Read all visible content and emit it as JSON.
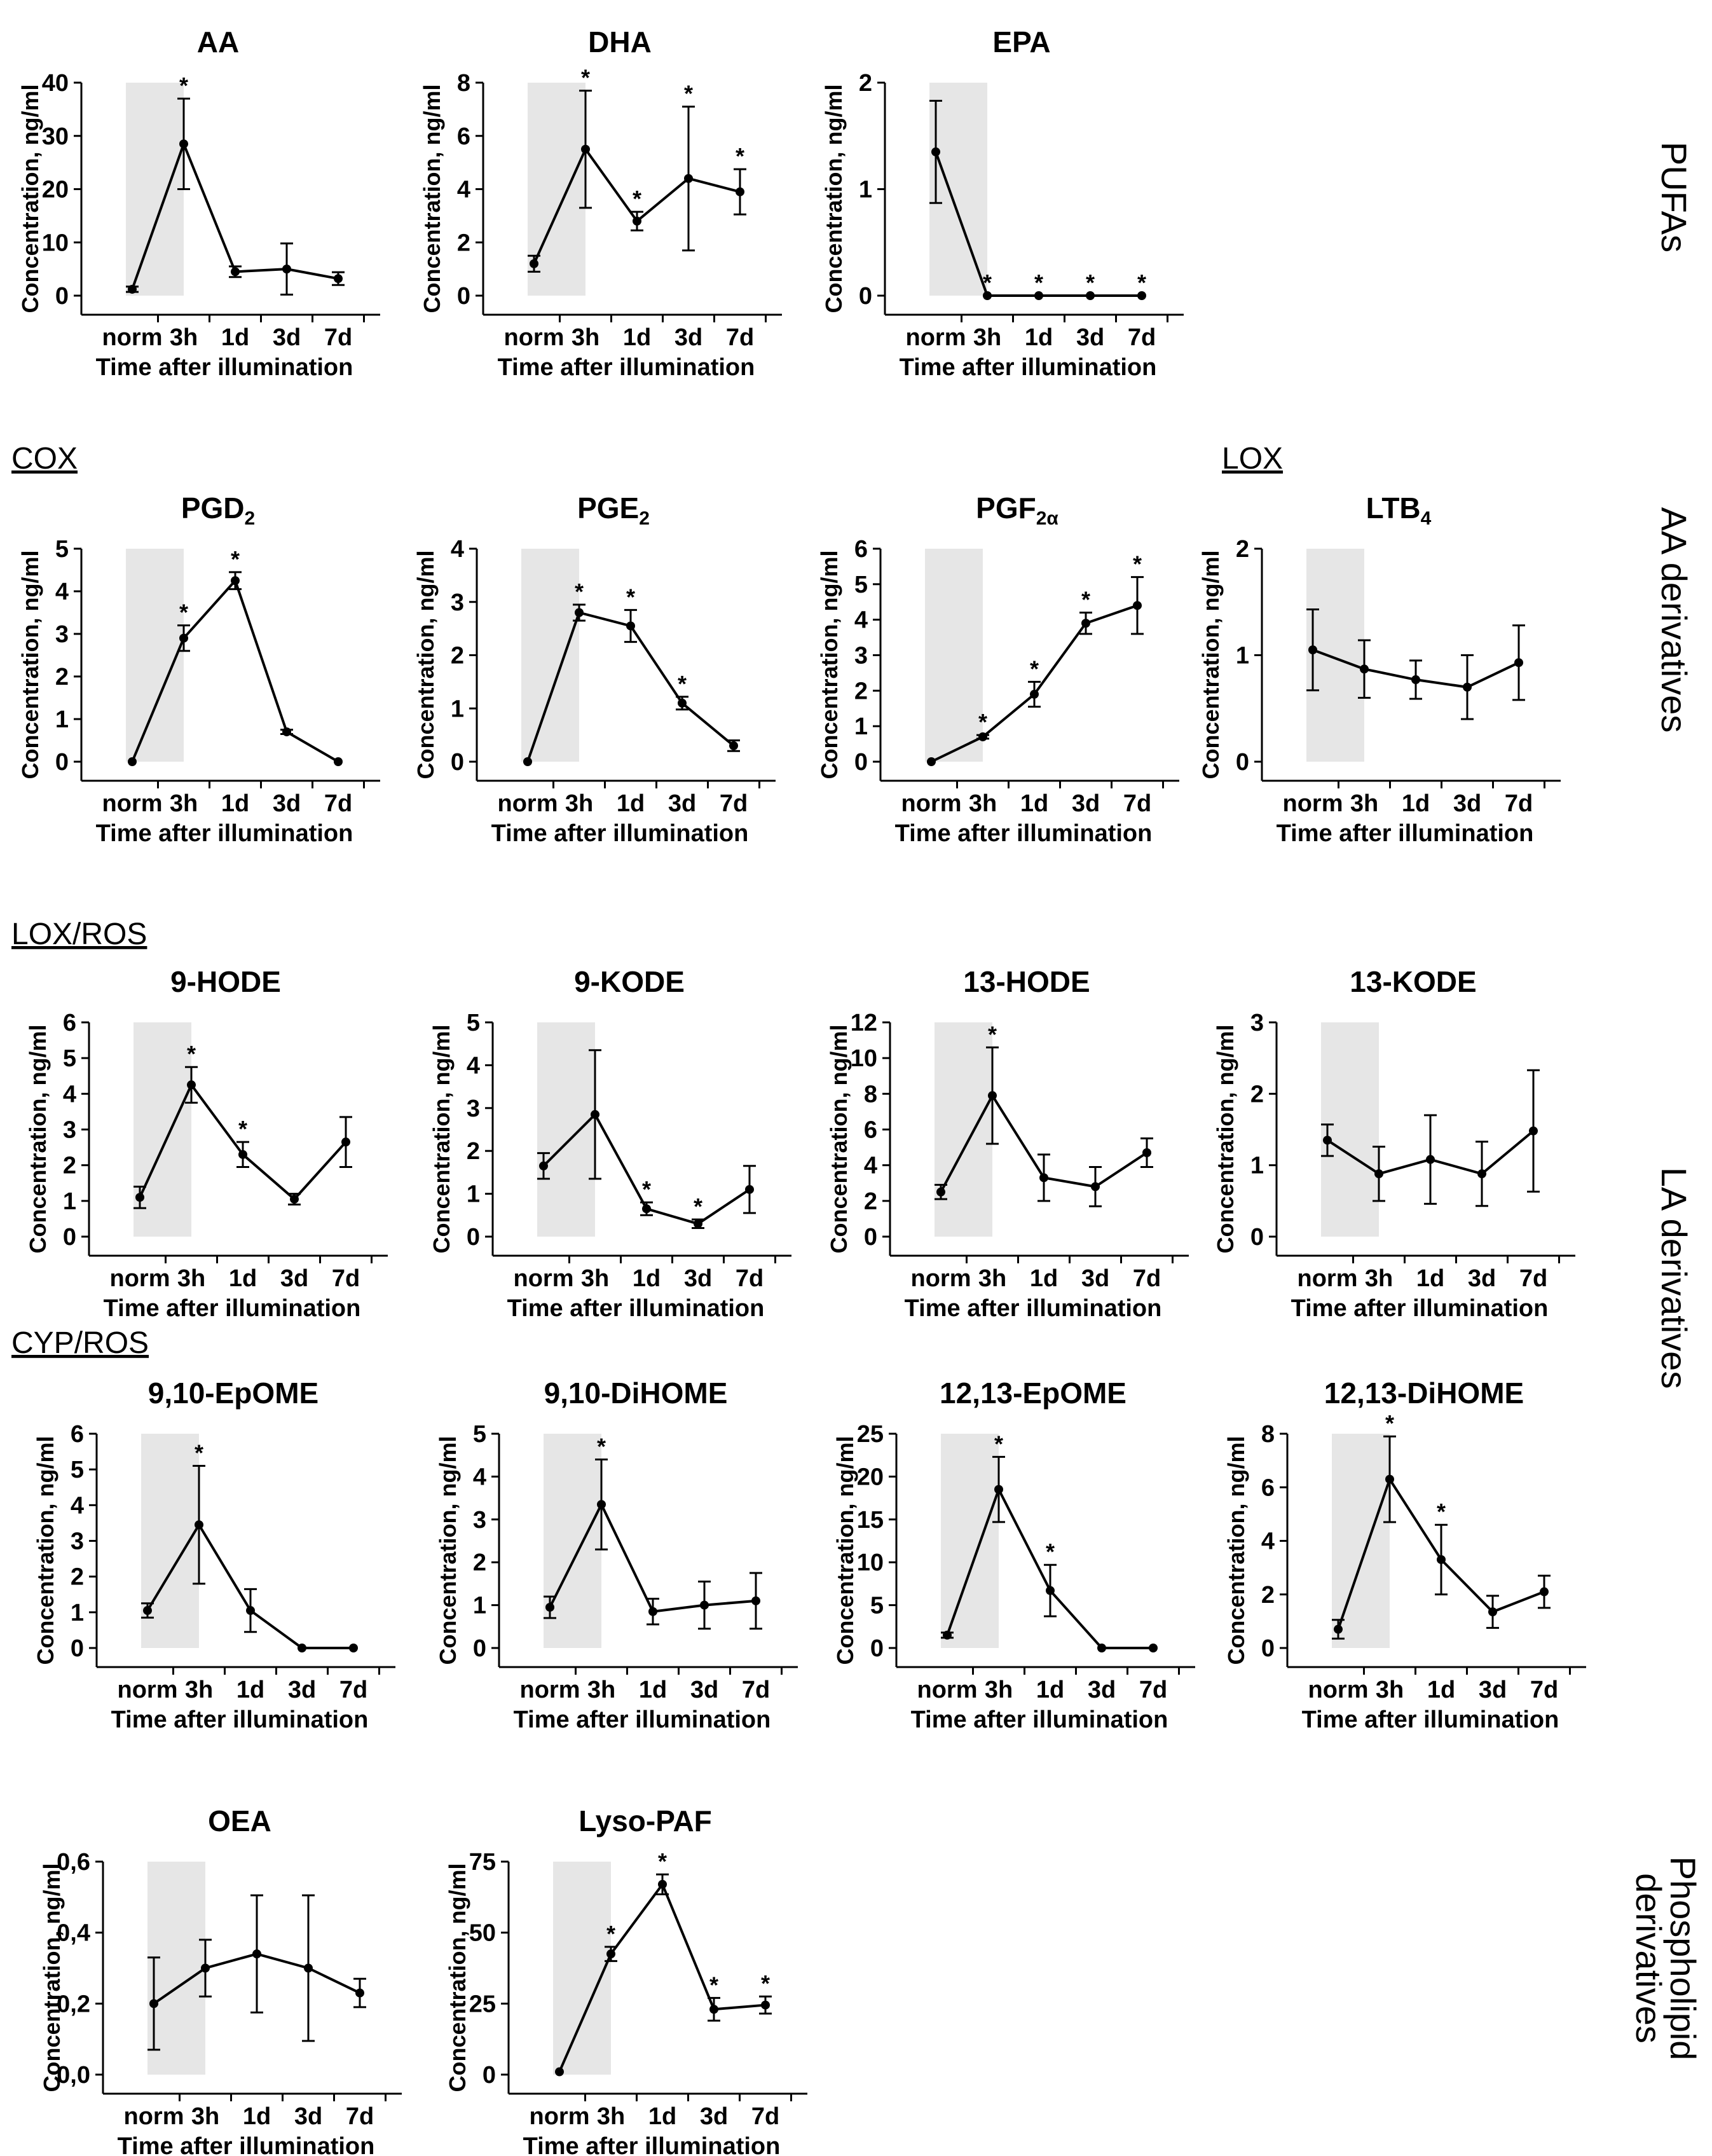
{
  "figure_title": "",
  "row_labels": {
    "pufas": "PUFAs",
    "aa_derivatives": "AA derivatives",
    "la_derivatives": "LA derivatives",
    "phospholipid_line1": "Phospholipid",
    "phospholipid_line2": "derivatives"
  },
  "group_labels": {
    "cox": "COX",
    "lox": "LOX",
    "lox_ros": "LOX/ROS",
    "cyp_ros": "CYP/ROS"
  },
  "chart_data": [
    {
      "type": "line",
      "title": "AA",
      "title_sub": "",
      "xlabel": "Time after illumination",
      "ylabel": "Concentration, ng/ml",
      "categories": [
        "norm",
        "3h",
        "1d",
        "3d",
        "7d"
      ],
      "highlight": [
        "norm",
        "3h"
      ],
      "values": [
        1.2,
        28.5,
        4.5,
        5.0,
        3.2
      ],
      "errors": [
        0.5,
        8.5,
        1.0,
        4.8,
        1.2
      ],
      "significant": [
        false,
        true,
        false,
        false,
        false
      ],
      "ylim": [
        0,
        40
      ],
      "yticks": [
        "0",
        "10",
        "20",
        "30",
        "40"
      ]
    },
    {
      "type": "line",
      "title": "DHA",
      "title_sub": "",
      "xlabel": "Time after illumination",
      "ylabel": "Concentration, ng/ml",
      "categories": [
        "norm",
        "3h",
        "1d",
        "3d",
        "7d"
      ],
      "highlight": [
        "norm",
        "3h"
      ],
      "values": [
        1.2,
        5.5,
        2.8,
        4.4,
        3.9
      ],
      "errors": [
        0.3,
        2.2,
        0.35,
        2.7,
        0.85
      ],
      "significant": [
        false,
        true,
        true,
        true,
        true
      ],
      "ylim": [
        0,
        8
      ],
      "yticks": [
        "0",
        "2",
        "4",
        "6",
        "8"
      ]
    },
    {
      "type": "line",
      "title": "EPA",
      "title_sub": "",
      "xlabel": "Time after illumination",
      "ylabel": "Concentration, ng/ml",
      "categories": [
        "norm",
        "3h",
        "1d",
        "3d",
        "7d"
      ],
      "highlight": [
        "norm",
        "3h"
      ],
      "values": [
        1.35,
        0,
        0,
        0,
        0
      ],
      "errors": [
        0.48,
        0,
        0,
        0,
        0
      ],
      "significant": [
        false,
        true,
        true,
        true,
        true
      ],
      "ylim": [
        0,
        2
      ],
      "yticks": [
        "0",
        "1",
        "2"
      ]
    },
    {
      "type": "line",
      "title": "PGD",
      "title_sub": "2",
      "xlabel": "Time after illumination",
      "ylabel": "Concentration, ng/ml",
      "categories": [
        "norm",
        "3h",
        "1d",
        "3d",
        "7d"
      ],
      "highlight": [
        "norm",
        "3h"
      ],
      "values": [
        0,
        2.9,
        4.25,
        0.7,
        0
      ],
      "errors": [
        0,
        0.3,
        0.2,
        0.05,
        0
      ],
      "significant": [
        false,
        true,
        true,
        false,
        false
      ],
      "ylim": [
        0,
        5
      ],
      "yticks": [
        "0",
        "1",
        "2",
        "3",
        "4",
        "5"
      ]
    },
    {
      "type": "line",
      "title": "PGE",
      "title_sub": "2",
      "xlabel": "Time after illumination",
      "ylabel": "Concentration, ng/ml",
      "categories": [
        "norm",
        "3h",
        "1d",
        "3d",
        "7d"
      ],
      "highlight": [
        "norm",
        "3h"
      ],
      "values": [
        0,
        2.8,
        2.55,
        1.1,
        0.3
      ],
      "errors": [
        0,
        0.15,
        0.3,
        0.12,
        0.1
      ],
      "significant": [
        false,
        true,
        true,
        true,
        false
      ],
      "ylim": [
        0,
        4
      ],
      "yticks": [
        "0",
        "1",
        "2",
        "3",
        "4"
      ]
    },
    {
      "type": "line",
      "title": "PGF",
      "title_sub": "2α",
      "xlabel": "Time after illumination",
      "ylabel": "Concentration, ng/ml",
      "categories": [
        "norm",
        "3h",
        "1d",
        "3d",
        "7d"
      ],
      "highlight": [
        "norm",
        "3h"
      ],
      "values": [
        0,
        0.7,
        1.9,
        3.9,
        4.4
      ],
      "errors": [
        0,
        0.05,
        0.35,
        0.3,
        0.8
      ],
      "significant": [
        false,
        true,
        true,
        true,
        true
      ],
      "ylim": [
        0,
        6
      ],
      "yticks": [
        "0",
        "1",
        "2",
        "3",
        "4",
        "5",
        "6"
      ]
    },
    {
      "type": "line",
      "title": "LTB",
      "title_sub": "4",
      "xlabel": "Time after illumination",
      "ylabel": "Concentration, ng/ml",
      "categories": [
        "norm",
        "3h",
        "1d",
        "3d",
        "7d"
      ],
      "highlight": [
        "norm",
        "3h"
      ],
      "values": [
        1.05,
        0.87,
        0.77,
        0.7,
        0.93
      ],
      "errors": [
        0.38,
        0.27,
        0.18,
        0.3,
        0.35
      ],
      "significant": [
        false,
        false,
        false,
        false,
        false
      ],
      "ylim": [
        0,
        2
      ],
      "yticks": [
        "0",
        "1",
        "2"
      ]
    },
    {
      "type": "line",
      "title": "9-HODE",
      "title_sub": "",
      "xlabel": "Time after illumination",
      "ylabel": "Concentration, ng/ml",
      "categories": [
        "norm",
        "3h",
        "1d",
        "3d",
        "7d"
      ],
      "highlight": [
        "norm",
        "3h"
      ],
      "values": [
        1.1,
        4.25,
        2.3,
        1.05,
        2.65
      ],
      "errors": [
        0.3,
        0.5,
        0.35,
        0.15,
        0.7
      ],
      "significant": [
        false,
        true,
        true,
        false,
        false
      ],
      "ylim": [
        0,
        6
      ],
      "yticks": [
        "0",
        "1",
        "2",
        "3",
        "4",
        "5",
        "6"
      ]
    },
    {
      "type": "line",
      "title": "9-KODE",
      "title_sub": "",
      "xlabel": "Time after illumination",
      "ylabel": "Concentration, ng/ml",
      "categories": [
        "norm",
        "3h",
        "1d",
        "3d",
        "7d"
      ],
      "highlight": [
        "norm",
        "3h"
      ],
      "values": [
        1.65,
        2.85,
        0.65,
        0.3,
        1.1
      ],
      "errors": [
        0.3,
        1.5,
        0.15,
        0.1,
        0.55
      ],
      "significant": [
        false,
        false,
        true,
        true,
        false
      ],
      "ylim": [
        0,
        5
      ],
      "yticks": [
        "0",
        "1",
        "2",
        "3",
        "4",
        "5"
      ]
    },
    {
      "type": "line",
      "title": "13-HODE",
      "title_sub": "",
      "xlabel": "Time after illumination",
      "ylabel": "Concentration, ng/ml",
      "categories": [
        "norm",
        "3h",
        "1d",
        "3d",
        "7d"
      ],
      "highlight": [
        "norm",
        "3h"
      ],
      "values": [
        2.5,
        7.9,
        3.3,
        2.8,
        4.7
      ],
      "errors": [
        0.4,
        2.7,
        1.3,
        1.1,
        0.8
      ],
      "significant": [
        false,
        true,
        false,
        false,
        false
      ],
      "ylim": [
        0,
        12
      ],
      "yticks": [
        "0",
        "2",
        "4",
        "6",
        "8",
        "10",
        "12"
      ]
    },
    {
      "type": "line",
      "title": "13-KODE",
      "title_sub": "",
      "xlabel": "Time after illumination",
      "ylabel": "Concentration, ng/ml",
      "categories": [
        "norm",
        "3h",
        "1d",
        "3d",
        "7d"
      ],
      "highlight": [
        "norm",
        "3h"
      ],
      "values": [
        1.35,
        0.88,
        1.08,
        0.88,
        1.48
      ],
      "errors": [
        0.22,
        0.38,
        0.62,
        0.45,
        0.85
      ],
      "significant": [
        false,
        false,
        false,
        false,
        false
      ],
      "ylim": [
        0,
        3
      ],
      "yticks": [
        "0",
        "1",
        "2",
        "3"
      ]
    },
    {
      "type": "line",
      "title": "9,10-EpOME",
      "title_sub": "",
      "xlabel": "Time after illumination",
      "ylabel": "Concentration, ng/ml",
      "categories": [
        "norm",
        "3h",
        "1d",
        "3d",
        "7d"
      ],
      "highlight": [
        "norm",
        "3h"
      ],
      "values": [
        1.05,
        3.45,
        1.05,
        0,
        0
      ],
      "errors": [
        0.2,
        1.65,
        0.6,
        0,
        0
      ],
      "significant": [
        false,
        true,
        false,
        false,
        false
      ],
      "ylim": [
        0,
        6
      ],
      "yticks": [
        "0",
        "1",
        "2",
        "3",
        "4",
        "5",
        "6"
      ]
    },
    {
      "type": "line",
      "title": "9,10-DiHOME",
      "title_sub": "",
      "xlabel": "Time after illumination",
      "ylabel": "Concentration, ng/ml",
      "categories": [
        "norm",
        "3h",
        "1d",
        "3d",
        "7d"
      ],
      "highlight": [
        "norm",
        "3h"
      ],
      "values": [
        0.95,
        3.35,
        0.85,
        1.0,
        1.1
      ],
      "errors": [
        0.25,
        1.05,
        0.3,
        0.55,
        0.65
      ],
      "significant": [
        false,
        true,
        false,
        false,
        false
      ],
      "ylim": [
        0,
        5
      ],
      "yticks": [
        "0",
        "1",
        "2",
        "3",
        "4",
        "5"
      ]
    },
    {
      "type": "line",
      "title": "12,13-EpOME",
      "title_sub": "",
      "xlabel": "Time after illumination",
      "ylabel": "Concentration, ng/ml",
      "categories": [
        "norm",
        "3h",
        "1d",
        "3d",
        "7d"
      ],
      "highlight": [
        "norm",
        "3h"
      ],
      "values": [
        1.5,
        18.5,
        6.7,
        0,
        0
      ],
      "errors": [
        0.3,
        3.8,
        3.0,
        0,
        0
      ],
      "significant": [
        false,
        true,
        true,
        false,
        false
      ],
      "ylim": [
        0,
        25
      ],
      "yticks": [
        "0",
        "5",
        "10",
        "15",
        "20",
        "25"
      ]
    },
    {
      "type": "line",
      "title": "12,13-DiHOME",
      "title_sub": "",
      "xlabel": "Time after illumination",
      "ylabel": "Concentration, ng/ml",
      "categories": [
        "norm",
        "3h",
        "1d",
        "3d",
        "7d"
      ],
      "highlight": [
        "norm",
        "3h"
      ],
      "values": [
        0.7,
        6.3,
        3.3,
        1.35,
        2.1
      ],
      "errors": [
        0.35,
        1.6,
        1.3,
        0.6,
        0.6
      ],
      "significant": [
        false,
        true,
        true,
        false,
        false
      ],
      "ylim": [
        0,
        8
      ],
      "yticks": [
        "0",
        "2",
        "4",
        "6",
        "8"
      ]
    },
    {
      "type": "line",
      "title": "OEA",
      "title_sub": "",
      "xlabel": "Time after illumination",
      "ylabel": "Concentration, ng/ml",
      "categories": [
        "norm",
        "3h",
        "1d",
        "3d",
        "7d"
      ],
      "highlight": [
        "norm",
        "3h"
      ],
      "values": [
        0.2,
        0.3,
        0.34,
        0.3,
        0.23
      ],
      "errors": [
        0.13,
        0.08,
        0.165,
        0.205,
        0.04
      ],
      "significant": [
        false,
        false,
        false,
        false,
        false
      ],
      "ylim": [
        0,
        0.6
      ],
      "yticks": [
        "0,0",
        "0,2",
        "0,4",
        "0,6"
      ]
    },
    {
      "type": "line",
      "title": "Lyso-PAF",
      "title_sub": "",
      "xlabel": "Time after illumination",
      "ylabel": "Concentration, ng/ml",
      "categories": [
        "norm",
        "3h",
        "1d",
        "3d",
        "7d"
      ],
      "highlight": [
        "norm",
        "3h"
      ],
      "values": [
        1,
        42.5,
        67,
        23,
        24.5
      ],
      "errors": [
        0,
        2.5,
        3.5,
        4.0,
        3.0
      ],
      "significant": [
        false,
        true,
        true,
        true,
        true
      ],
      "ylim": [
        0,
        75
      ],
      "yticks": [
        "0",
        "25",
        "50",
        "75"
      ]
    }
  ]
}
